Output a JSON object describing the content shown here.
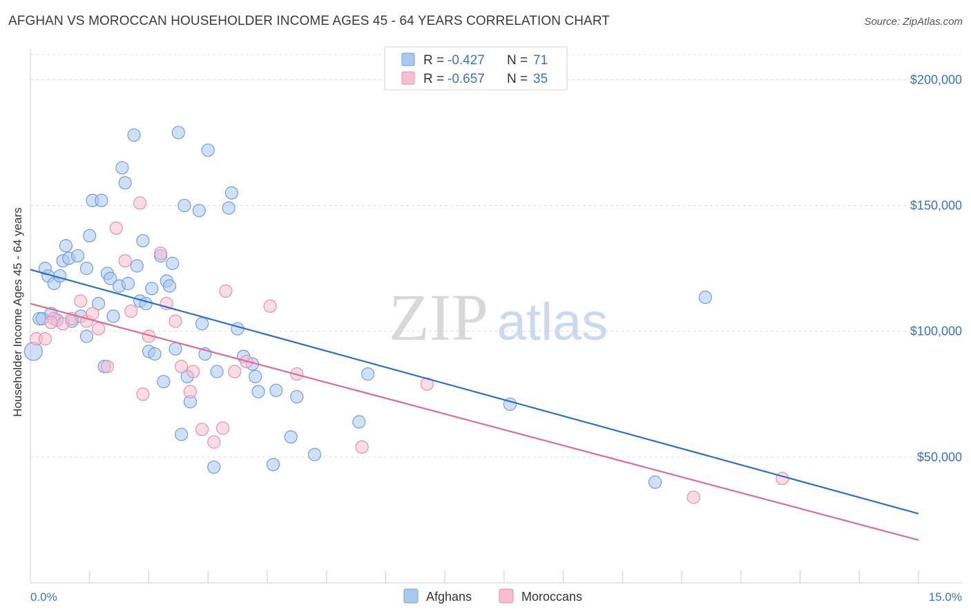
{
  "header": {
    "title": "AFGHAN VS MOROCCAN HOUSEHOLDER INCOME AGES 45 - 64 YEARS CORRELATION CHART",
    "source": "Source: ZipAtlas.com"
  },
  "watermark": {
    "zip": "ZIP",
    "atlas": "atlas"
  },
  "colors": {
    "afghans_fill": "#a9c8f0",
    "afghans_stroke": "#6f9fdc",
    "afghans_line": "#2a6fcf",
    "moroccans_fill": "#f6bfd0",
    "moroccans_stroke": "#e98fae",
    "moroccans_line": "#e06a94",
    "axis_text": "#3a72c8",
    "grid": "#dcdcdc"
  },
  "legend": {
    "rows": [
      {
        "r_label": "R =",
        "r_value": "-0.427",
        "n_label": "N =",
        "n_value": "71"
      },
      {
        "r_label": "R =",
        "r_value": "-0.657",
        "n_label": "N =",
        "n_value": "35"
      }
    ]
  },
  "bottom_legend": {
    "afghans": "Afghans",
    "moroccans": "Moroccans"
  },
  "chart_data": {
    "type": "scatter",
    "title": "AFGHAN VS MOROCCAN HOUSEHOLDER INCOME AGES 45 - 64 YEARS CORRELATION CHART",
    "xlabel": "",
    "ylabel": "Householder Income Ages 45 - 64 years",
    "xlim": [
      0,
      15
    ],
    "ylim": [
      0,
      210000
    ],
    "x_tick_labels": [
      "0.0%",
      "15.0%"
    ],
    "y_ticks": [
      50000,
      100000,
      150000,
      200000
    ],
    "y_tick_labels": [
      "$50,000",
      "$100,000",
      "$150,000",
      "$200,000"
    ],
    "grid": true,
    "legend_position": "top-center",
    "series": [
      {
        "name": "Afghans",
        "trend": {
          "x": [
            0.0,
            15.0
          ],
          "y": [
            124500,
            27500
          ]
        },
        "points": [
          [
            0.05,
            92000
          ],
          [
            0.15,
            105000
          ],
          [
            0.2,
            105000
          ],
          [
            0.25,
            125000
          ],
          [
            0.3,
            122000
          ],
          [
            0.35,
            107000
          ],
          [
            0.4,
            119000
          ],
          [
            0.5,
            122000
          ],
          [
            0.55,
            128000
          ],
          [
            0.6,
            134000
          ],
          [
            0.65,
            129000
          ],
          [
            0.7,
            104000
          ],
          [
            0.8,
            130000
          ],
          [
            0.85,
            106000
          ],
          [
            0.95,
            125000
          ],
          [
            1.0,
            138000
          ],
          [
            1.05,
            152000
          ],
          [
            1.15,
            111000
          ],
          [
            1.2,
            152000
          ],
          [
            1.25,
            86000
          ],
          [
            1.3,
            123000
          ],
          [
            1.35,
            121000
          ],
          [
            1.4,
            106000
          ],
          [
            1.5,
            118000
          ],
          [
            1.55,
            165000
          ],
          [
            1.6,
            159000
          ],
          [
            1.65,
            119000
          ],
          [
            1.75,
            178000
          ],
          [
            1.8,
            126000
          ],
          [
            1.85,
            112000
          ],
          [
            1.9,
            136000
          ],
          [
            1.95,
            111000
          ],
          [
            2.0,
            92000
          ],
          [
            2.05,
            117000
          ],
          [
            2.1,
            91000
          ],
          [
            2.2,
            130000
          ],
          [
            2.25,
            80000
          ],
          [
            2.3,
            120000
          ],
          [
            2.35,
            118000
          ],
          [
            2.4,
            127000
          ],
          [
            2.45,
            93000
          ],
          [
            2.5,
            179000
          ],
          [
            2.55,
            59000
          ],
          [
            2.6,
            150000
          ],
          [
            2.65,
            82000
          ],
          [
            2.7,
            72000
          ],
          [
            2.85,
            148000
          ],
          [
            2.9,
            103000
          ],
          [
            2.95,
            91000
          ],
          [
            3.0,
            172000
          ],
          [
            3.1,
            46000
          ],
          [
            3.15,
            84000
          ],
          [
            3.35,
            149000
          ],
          [
            3.4,
            155000
          ],
          [
            3.5,
            101000
          ],
          [
            3.6,
            90000
          ],
          [
            3.75,
            87000
          ],
          [
            3.8,
            82000
          ],
          [
            3.85,
            76000
          ],
          [
            4.1,
            47000
          ],
          [
            4.15,
            76500
          ],
          [
            4.4,
            58000
          ],
          [
            4.5,
            74000
          ],
          [
            4.8,
            51000
          ],
          [
            5.55,
            64000
          ],
          [
            5.7,
            83000
          ],
          [
            8.1,
            71000
          ],
          [
            10.55,
            40000
          ],
          [
            11.4,
            113500
          ],
          [
            0.45,
            104500
          ],
          [
            0.95,
            98000
          ]
        ]
      },
      {
        "name": "Moroccans",
        "trend": {
          "x": [
            0.0,
            15.0
          ],
          "y": [
            111000,
            17000
          ]
        },
        "points": [
          [
            0.1,
            97000
          ],
          [
            0.25,
            97000
          ],
          [
            0.4,
            105000
          ],
          [
            0.55,
            103000
          ],
          [
            0.7,
            105000
          ],
          [
            0.85,
            112000
          ],
          [
            0.95,
            104000
          ],
          [
            1.05,
            107000
          ],
          [
            1.15,
            101000
          ],
          [
            1.3,
            86000
          ],
          [
            1.45,
            141000
          ],
          [
            1.6,
            128000
          ],
          [
            1.7,
            108000
          ],
          [
            1.85,
            151000
          ],
          [
            1.9,
            75000
          ],
          [
            2.0,
            98000
          ],
          [
            2.2,
            131000
          ],
          [
            2.3,
            111000
          ],
          [
            2.45,
            104000
          ],
          [
            2.55,
            86000
          ],
          [
            2.7,
            76000
          ],
          [
            2.75,
            84000
          ],
          [
            2.9,
            61000
          ],
          [
            3.1,
            56000
          ],
          [
            3.25,
            61500
          ],
          [
            3.3,
            116000
          ],
          [
            3.45,
            84000
          ],
          [
            3.65,
            88000
          ],
          [
            4.05,
            110000
          ],
          [
            4.5,
            83000
          ],
          [
            5.6,
            54000
          ],
          [
            6.7,
            79000
          ],
          [
            11.2,
            34000
          ],
          [
            12.7,
            41500
          ],
          [
            0.35,
            103500
          ]
        ]
      }
    ]
  }
}
